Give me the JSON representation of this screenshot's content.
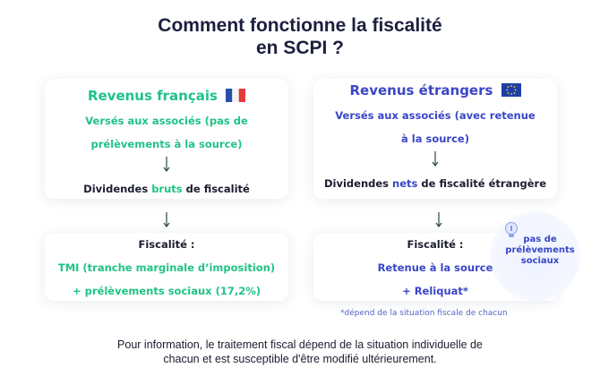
{
  "title": {
    "line1": "Comment fonctionne la fiscalité",
    "line2": "en SCPI ?"
  },
  "left": {
    "heading": "Revenus français",
    "paid": {
      "line1": "Versés aux associés (pas de",
      "line2": "prélèvements à la source)"
    },
    "dividends": {
      "before": "Dividendes",
      "highlight": "bruts",
      "after": "de fiscalité"
    },
    "tax_label": "Fiscalité :",
    "tax_lines": [
      "TMI (tranche marginale d’imposition)",
      "+ prélèvements sociaux (17,2%)"
    ]
  },
  "right": {
    "heading": "Revenus étrangers",
    "paid": {
      "line1": "Versés aux associés (avec retenue",
      "line2": "à la source)"
    },
    "dividends": {
      "before": "Dividendes",
      "highlight": "nets",
      "after": "de fiscalité étrangère"
    },
    "tax_label": "Fiscalité :",
    "tax_lines": [
      "Retenue à la source",
      "+ Reliquat*"
    ]
  },
  "bubble": {
    "lines": [
      "pas de",
      "prélèvements",
      "sociaux"
    ]
  },
  "footnote": "*dépend de la situation fiscale de chacun",
  "disclaimer": [
    "Pour information, le traitement fiscal dépend de la situation individuelle de",
    "chacun et est susceptible d'être modifié ultérieurement."
  ]
}
